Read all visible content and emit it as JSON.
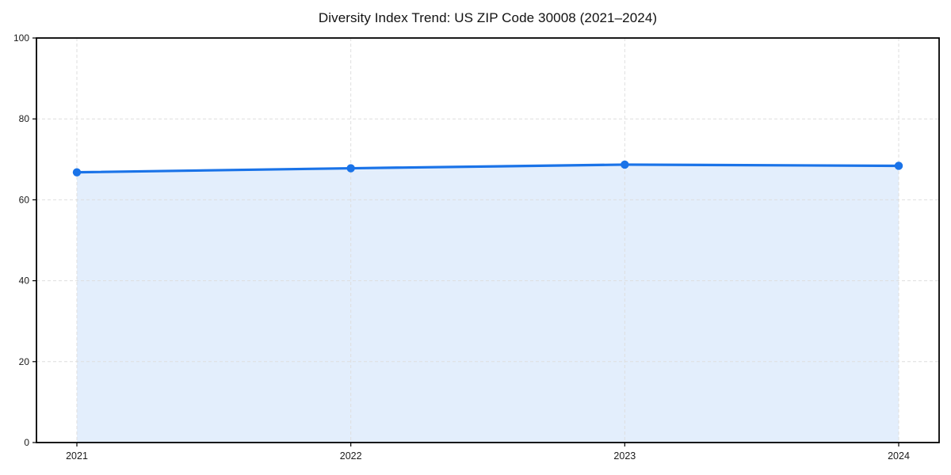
{
  "chart_data": {
    "type": "area",
    "title": "Diversity Index Trend: US ZIP Code 30008 (2021–2024)",
    "categories": [
      "2021",
      "2022",
      "2023",
      "2024"
    ],
    "values": [
      66.8,
      67.8,
      68.7,
      68.4
    ],
    "xlabel": "",
    "ylabel": "",
    "ylim": [
      0,
      100
    ],
    "yticks": [
      0,
      20,
      40,
      60,
      80,
      100
    ],
    "grid": true,
    "grid_style": "dashed",
    "legend": false,
    "colors": {
      "line": "#1a73e8",
      "fill": "#1a73e8",
      "fill_opacity": 0.12,
      "grid": "#dedede",
      "axis": "#000000",
      "tick_text": "#1a1a1a",
      "background": "#ffffff"
    }
  }
}
